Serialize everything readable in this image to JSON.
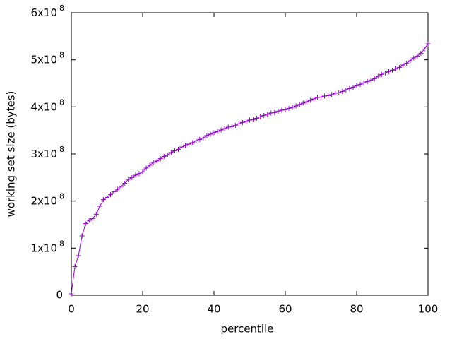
{
  "chart_data": {
    "type": "line",
    "xlabel": "percentile",
    "ylabel": "working set size (bytes)",
    "color": "#9400d3",
    "marker": "+",
    "x": [
      0,
      1,
      2,
      3,
      4,
      5,
      6,
      7,
      8,
      9,
      10,
      11,
      12,
      13,
      14,
      15,
      16,
      17,
      18,
      19,
      20,
      21,
      22,
      23,
      24,
      25,
      26,
      27,
      28,
      29,
      30,
      31,
      32,
      33,
      34,
      35,
      36,
      37,
      38,
      39,
      40,
      41,
      42,
      43,
      44,
      45,
      46,
      47,
      48,
      49,
      50,
      51,
      52,
      53,
      54,
      55,
      56,
      57,
      58,
      59,
      60,
      61,
      62,
      63,
      64,
      65,
      66,
      67,
      68,
      69,
      70,
      71,
      72,
      73,
      74,
      75,
      76,
      77,
      78,
      79,
      80,
      81,
      82,
      83,
      84,
      85,
      86,
      87,
      88,
      89,
      90,
      91,
      92,
      93,
      94,
      95,
      96,
      97,
      98,
      99,
      100
    ],
    "values": [
      3000000.0,
      61000000.0,
      84000000.0,
      126000000.0,
      152000000.0,
      159000000.0,
      163000000.0,
      172000000.0,
      189000000.0,
      203000000.0,
      208000000.0,
      214000000.0,
      220000000.0,
      225000000.0,
      231000000.0,
      238000000.0,
      246000000.0,
      250000000.0,
      255000000.0,
      258000000.0,
      262000000.0,
      270000000.0,
      276000000.0,
      282000000.0,
      285000000.0,
      290000000.0,
      295000000.0,
      298000000.0,
      303000000.0,
      307000000.0,
      310000000.0,
      315000000.0,
      318000000.0,
      321000000.0,
      324000000.0,
      328000000.0,
      331000000.0,
      334000000.0,
      339000000.0,
      342000000.0,
      345000000.0,
      348000000.0,
      351000000.0,
      354000000.0,
      357000000.0,
      358000000.0,
      361000000.0,
      364000000.0,
      367000000.0,
      369000000.0,
      372000000.0,
      373000000.0,
      376000000.0,
      379000000.0,
      382000000.0,
      384000000.0,
      387000000.0,
      388000000.0,
      391000000.0,
      393000000.0,
      394000000.0,
      397000000.0,
      399000000.0,
      402000000.0,
      405000000.0,
      408000000.0,
      411000000.0,
      414000000.0,
      417000000.0,
      420000000.0,
      421000000.0,
      423000000.0,
      424000000.0,
      426000000.0,
      429000000.0,
      430000000.0,
      433000000.0,
      436000000.0,
      439000000.0,
      442000000.0,
      445000000.0,
      448000000.0,
      451000000.0,
      454000000.0,
      457000000.0,
      460000000.0,
      465000000.0,
      469000000.0,
      472000000.0,
      475000000.0,
      478000000.0,
      481000000.0,
      484000000.0,
      489000000.0,
      493000000.0,
      498000000.0,
      504000000.0,
      508000000.0,
      514000000.0,
      523000000.0,
      534000000.0
    ],
    "xlim": [
      0,
      100
    ],
    "xticks": [
      0,
      20,
      40,
      60,
      80,
      100
    ],
    "ylim": [
      0,
      600000000
    ],
    "yticks": [
      0,
      {
        "value": 100000000,
        "label": "1x10",
        "sup": "8"
      },
      {
        "value": 200000000,
        "label": "2x10",
        "sup": "8"
      },
      {
        "value": 300000000,
        "label": "3x10",
        "sup": "8"
      },
      {
        "value": 400000000,
        "label": "4x10",
        "sup": "8"
      },
      {
        "value": 500000000,
        "label": "5x10",
        "sup": "8"
      },
      {
        "value": 600000000,
        "label": "6x10",
        "sup": "8"
      }
    ],
    "grid": false,
    "mirror_ticks": true
  }
}
